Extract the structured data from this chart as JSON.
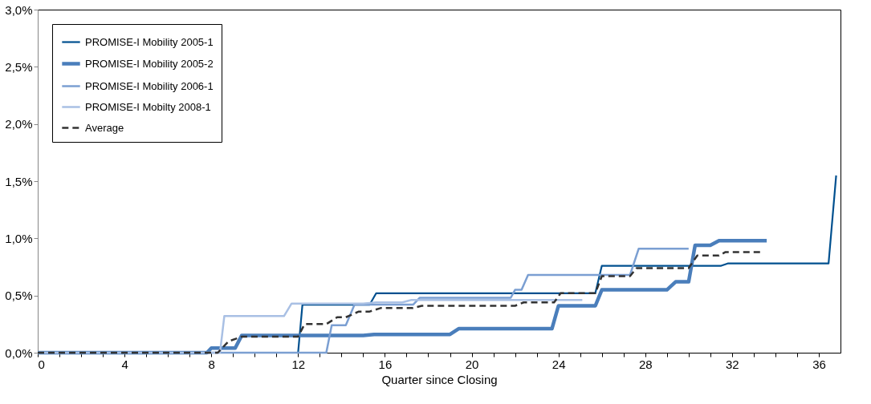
{
  "chart_data": {
    "type": "line",
    "xlabel": "Quarter since Closing",
    "xlim": [
      0,
      37
    ],
    "ylim": [
      0,
      3.0
    ],
    "xticks": [
      0,
      {
        "value": 1,
        "label": null
      },
      {
        "value": 2,
        "label": null
      },
      {
        "value": 3,
        "label": null
      },
      4,
      {
        "value": 5,
        "label": null
      },
      {
        "value": 6,
        "label": null
      },
      {
        "value": 7,
        "label": null
      },
      8,
      {
        "value": 9,
        "label": null
      },
      {
        "value": 10,
        "label": null
      },
      {
        "value": 11,
        "label": null
      },
      12,
      {
        "value": 13,
        "label": null
      },
      {
        "value": 14,
        "label": null
      },
      {
        "value": 15,
        "label": null
      },
      16,
      {
        "value": 17,
        "label": null
      },
      {
        "value": 18,
        "label": null
      },
      {
        "value": 19,
        "label": null
      },
      20,
      {
        "value": 21,
        "label": null
      },
      {
        "value": 22,
        "label": null
      },
      {
        "value": 23,
        "label": null
      },
      24,
      {
        "value": 25,
        "label": null
      },
      {
        "value": 26,
        "label": null
      },
      {
        "value": 27,
        "label": null
      },
      28,
      {
        "value": 29,
        "label": null
      },
      {
        "value": 30,
        "label": null
      },
      {
        "value": 31,
        "label": null
      },
      32,
      {
        "value": 33,
        "label": null
      },
      {
        "value": 34,
        "label": null
      },
      {
        "value": 35,
        "label": null
      },
      36
    ],
    "yticks": [
      {
        "value": 0,
        "label": "0,0%"
      },
      {
        "value": 0.5,
        "label": "0,5%"
      },
      {
        "value": 1.0,
        "label": "1,0%"
      },
      {
        "value": 1.5,
        "label": "1,5%"
      },
      {
        "value": 2.0,
        "label": "2,0%"
      },
      {
        "value": 2.5,
        "label": "2,5%"
      },
      {
        "value": 3.0,
        "label": "3,0%"
      }
    ],
    "grid": false,
    "legend": "top left",
    "marker": "none",
    "series": [
      {
        "name": "PROMISE-I Mobility 2005-1",
        "color": "#00508f",
        "line_style": "solid",
        "x": [
          0,
          12.0,
          12.2,
          15.3,
          15.6,
          25.7,
          26.0,
          31.5,
          31.8,
          36.45,
          36.8
        ],
        "values": [
          0,
          0,
          0.42,
          0.42,
          0.52,
          0.52,
          0.76,
          0.76,
          0.78,
          0.78,
          1.55
        ]
      },
      {
        "name": "PROMISE-I Mobility 2005-2",
        "color": "#4a7ebb",
        "line_style": "solid",
        "x": [
          0,
          7.8,
          8.0,
          9.1,
          9.4,
          15.0,
          15.5,
          19.0,
          19.4,
          23.7,
          24.0,
          25.7,
          26.0,
          29.0,
          29.4,
          30.0,
          30.3,
          31.0,
          31.4,
          33.6
        ],
        "values": [
          0,
          0,
          0.04,
          0.04,
          0.15,
          0.15,
          0.16,
          0.16,
          0.21,
          0.21,
          0.41,
          0.41,
          0.55,
          0.55,
          0.62,
          0.62,
          0.94,
          0.94,
          0.98,
          0.98
        ]
      },
      {
        "name": "PROMISE-I Mobility 2006-1",
        "color": "#7b9fd2",
        "line_style": "solid",
        "x": [
          0,
          13.3,
          13.55,
          14.2,
          14.6,
          17.3,
          17.6,
          21.8,
          22.0,
          22.3,
          22.6,
          27.3,
          27.7,
          30.0
        ],
        "values": [
          0,
          0,
          0.24,
          0.24,
          0.42,
          0.42,
          0.48,
          0.48,
          0.55,
          0.55,
          0.68,
          0.68,
          0.91,
          0.91
        ]
      },
      {
        "name": "PROMISE-I Mobilty 2008-1",
        "color": "#a9c0e4",
        "line_style": "solid",
        "x": [
          0,
          8.4,
          8.6,
          11.35,
          11.7,
          15.0,
          15.6,
          16.8,
          17.2,
          25.1
        ],
        "values": [
          0,
          0,
          0.32,
          0.32,
          0.43,
          0.43,
          0.44,
          0.44,
          0.46,
          0.46
        ]
      },
      {
        "name": "Average",
        "color": "#333333",
        "line_style": "dashed",
        "x": [
          0,
          8.3,
          8.8,
          9.4,
          12.0,
          12.3,
          13.3,
          13.8,
          14.2,
          14.8,
          15.3,
          15.8,
          17.3,
          17.7,
          22.0,
          22.4,
          23.8,
          24.1,
          25.7,
          26.0,
          27.3,
          27.6,
          30.0,
          30.4,
          31.4,
          31.7,
          33.3
        ],
        "values": [
          0,
          0,
          0.1,
          0.14,
          0.14,
          0.25,
          0.25,
          0.31,
          0.31,
          0.36,
          0.36,
          0.39,
          0.39,
          0.41,
          0.41,
          0.44,
          0.44,
          0.52,
          0.52,
          0.67,
          0.67,
          0.74,
          0.74,
          0.85,
          0.85,
          0.88,
          0.88
        ]
      }
    ]
  }
}
